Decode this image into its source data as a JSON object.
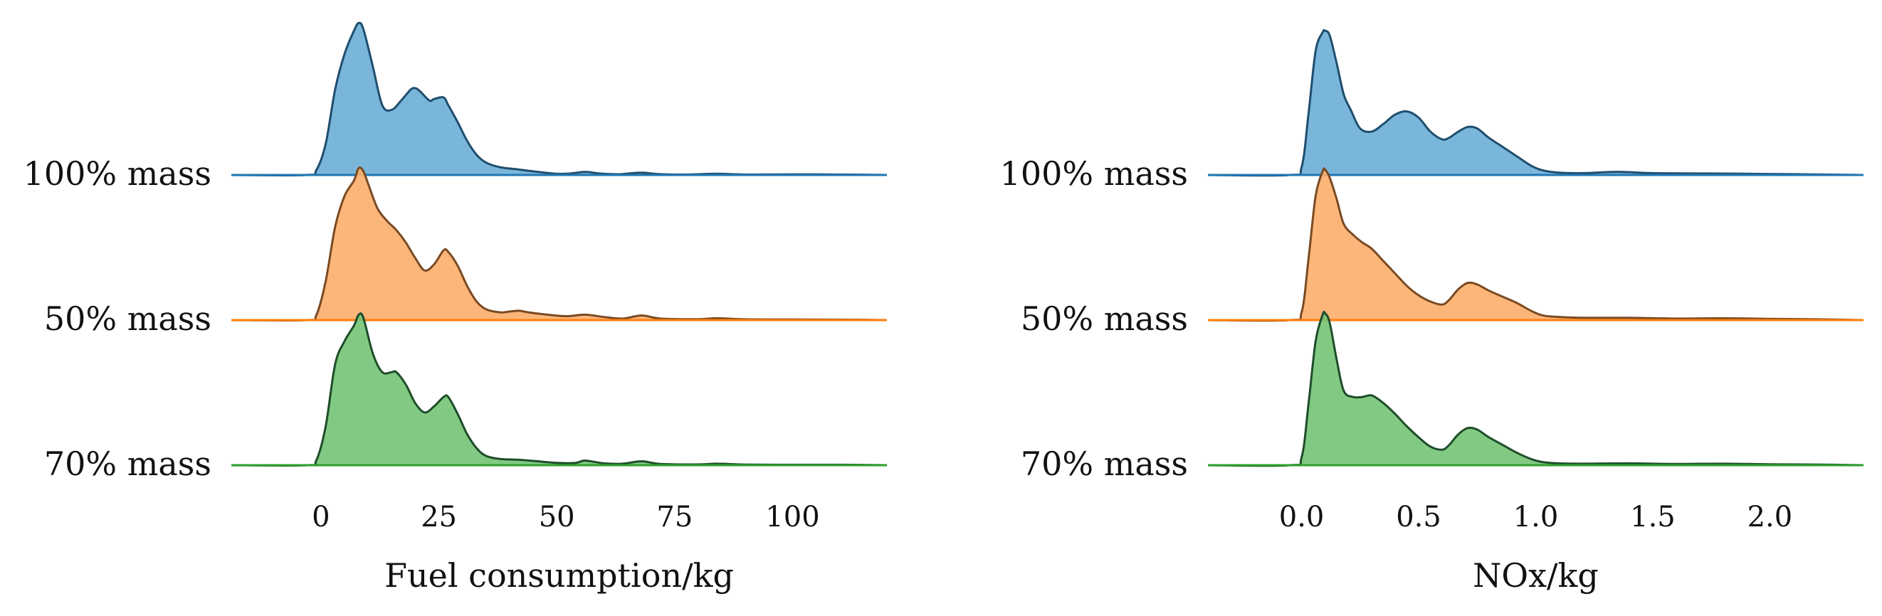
{
  "chart_data": [
    {
      "type": "area",
      "subtype": "ridgeline-kde",
      "title": "",
      "xlabel": "Fuel consumption/kg",
      "ylabel": "",
      "xlim": [
        -19,
        120
      ],
      "xticks": [
        0,
        25,
        50,
        75,
        100
      ],
      "xtick_labels": [
        "0",
        "25",
        "50",
        "75",
        "100"
      ],
      "grid": false,
      "series": [
        {
          "name": "100% mass",
          "color": "#6baed6",
          "edge": "#1f4e6e",
          "baseline": "#1f77b4",
          "x": [
            -19,
            -3,
            -1,
            1,
            3,
            5,
            7,
            8,
            9,
            11,
            13,
            15,
            17,
            19,
            20,
            21,
            23,
            24,
            26,
            27,
            29,
            31,
            33,
            35,
            38,
            42,
            46,
            50,
            53,
            56,
            59,
            62,
            64,
            68,
            72,
            78,
            84,
            90,
            100,
            110,
            120
          ],
          "values": [
            0,
            0,
            0.03,
            0.2,
            0.55,
            0.78,
            0.93,
            0.98,
            0.94,
            0.7,
            0.45,
            0.42,
            0.48,
            0.55,
            0.56,
            0.54,
            0.48,
            0.49,
            0.5,
            0.45,
            0.34,
            0.22,
            0.13,
            0.08,
            0.05,
            0.035,
            0.02,
            0.008,
            0.01,
            0.02,
            0.01,
            0.005,
            0.006,
            0.015,
            0.005,
            0.003,
            0.008,
            0.003,
            0.004,
            0.003,
            0
          ]
        },
        {
          "name": "50% mass",
          "color": "#fdae6b",
          "edge": "#7a4a22",
          "baseline": "#ff7f0e",
          "x": [
            -19,
            -3,
            -1,
            1,
            3,
            5,
            7,
            8,
            9,
            10,
            12,
            14,
            16,
            18,
            20,
            22,
            24,
            26,
            27,
            29,
            31,
            33,
            35,
            38,
            40,
            42,
            44,
            48,
            52,
            56,
            60,
            64,
            68,
            72,
            80,
            84,
            90,
            100,
            110,
            120
          ],
          "values": [
            0,
            0,
            0.03,
            0.25,
            0.6,
            0.8,
            0.9,
            0.98,
            0.96,
            0.88,
            0.72,
            0.64,
            0.58,
            0.5,
            0.4,
            0.32,
            0.36,
            0.45,
            0.44,
            0.35,
            0.22,
            0.12,
            0.07,
            0.05,
            0.055,
            0.06,
            0.05,
            0.035,
            0.025,
            0.035,
            0.02,
            0.01,
            0.03,
            0.01,
            0.006,
            0.012,
            0.005,
            0.004,
            0.003,
            0
          ]
        },
        {
          "name": "70% mass",
          "color": "#74c476",
          "edge": "#1e4d2a",
          "baseline": "#2ca02c",
          "x": [
            -19,
            -3,
            -1,
            1,
            3,
            5,
            7,
            8,
            9,
            11,
            13,
            15,
            16,
            18,
            20,
            22,
            24,
            26,
            27,
            29,
            31,
            33,
            35,
            38,
            42,
            46,
            50,
            54,
            56,
            60,
            64,
            68,
            72,
            80,
            84,
            90,
            100,
            110,
            120
          ],
          "values": [
            0,
            0,
            0.03,
            0.25,
            0.65,
            0.8,
            0.9,
            0.97,
            0.95,
            0.72,
            0.6,
            0.6,
            0.6,
            0.52,
            0.4,
            0.34,
            0.38,
            0.44,
            0.44,
            0.33,
            0.2,
            0.11,
            0.06,
            0.04,
            0.035,
            0.025,
            0.015,
            0.015,
            0.03,
            0.012,
            0.01,
            0.025,
            0.008,
            0.005,
            0.01,
            0.004,
            0.003,
            0.003,
            0
          ]
        }
      ]
    },
    {
      "type": "area",
      "subtype": "ridgeline-kde",
      "title": "",
      "xlabel": "NOx/kg",
      "ylabel": "",
      "xlim": [
        -0.4,
        2.4
      ],
      "xticks": [
        0,
        0.5,
        1.0,
        1.5,
        2.0
      ],
      "xtick_labels": [
        "0.0",
        "0.5",
        "1.0",
        "1.5",
        "2.0"
      ],
      "grid": false,
      "series": [
        {
          "name": "100% mass",
          "color": "#6baed6",
          "edge": "#1f4e6e",
          "baseline": "#1f77b4",
          "x": [
            -0.4,
            -0.05,
            0,
            0.03,
            0.06,
            0.09,
            0.1,
            0.12,
            0.15,
            0.18,
            0.21,
            0.25,
            0.3,
            0.35,
            0.4,
            0.45,
            0.5,
            0.55,
            0.6,
            0.63,
            0.67,
            0.71,
            0.75,
            0.8,
            0.86,
            0.92,
            0.98,
            1.03,
            1.1,
            1.2,
            1.35,
            1.5,
            1.7,
            1.9,
            2.1,
            2.4
          ],
          "values": [
            0,
            0,
            0.05,
            0.4,
            0.8,
            0.92,
            0.93,
            0.9,
            0.72,
            0.52,
            0.42,
            0.3,
            0.28,
            0.33,
            0.39,
            0.41,
            0.37,
            0.28,
            0.23,
            0.24,
            0.28,
            0.31,
            0.3,
            0.24,
            0.18,
            0.12,
            0.06,
            0.03,
            0.015,
            0.012,
            0.02,
            0.012,
            0.01,
            0.008,
            0.005,
            0
          ]
        },
        {
          "name": "50% mass",
          "color": "#fdae6b",
          "edge": "#7a4a22",
          "baseline": "#ff7f0e",
          "x": [
            -0.4,
            -0.05,
            0,
            0.03,
            0.06,
            0.09,
            0.1,
            0.12,
            0.15,
            0.18,
            0.22,
            0.26,
            0.3,
            0.35,
            0.4,
            0.45,
            0.5,
            0.55,
            0.6,
            0.63,
            0.67,
            0.71,
            0.75,
            0.8,
            0.86,
            0.92,
            0.98,
            1.03,
            1.1,
            1.2,
            1.4,
            1.6,
            1.8,
            2.0,
            2.2,
            2.4
          ],
          "values": [
            0,
            0,
            0.05,
            0.4,
            0.8,
            0.96,
            0.97,
            0.92,
            0.78,
            0.62,
            0.55,
            0.5,
            0.46,
            0.38,
            0.3,
            0.22,
            0.16,
            0.12,
            0.1,
            0.13,
            0.2,
            0.24,
            0.23,
            0.19,
            0.15,
            0.11,
            0.06,
            0.03,
            0.02,
            0.015,
            0.015,
            0.01,
            0.012,
            0.008,
            0.005,
            0
          ]
        },
        {
          "name": "70% mass",
          "color": "#74c476",
          "edge": "#1e4d2a",
          "baseline": "#2ca02c",
          "x": [
            -0.4,
            -0.05,
            0,
            0.03,
            0.06,
            0.09,
            0.1,
            0.12,
            0.15,
            0.18,
            0.22,
            0.26,
            0.3,
            0.35,
            0.4,
            0.45,
            0.5,
            0.55,
            0.6,
            0.63,
            0.67,
            0.71,
            0.75,
            0.8,
            0.86,
            0.92,
            0.98,
            1.03,
            1.1,
            1.2,
            1.4,
            1.6,
            1.8,
            2.0,
            2.2,
            2.4
          ],
          "values": [
            0,
            0,
            0.05,
            0.4,
            0.8,
            0.97,
            0.98,
            0.92,
            0.68,
            0.48,
            0.44,
            0.44,
            0.45,
            0.4,
            0.33,
            0.25,
            0.18,
            0.12,
            0.1,
            0.13,
            0.2,
            0.24,
            0.23,
            0.18,
            0.13,
            0.08,
            0.04,
            0.02,
            0.012,
            0.01,
            0.012,
            0.008,
            0.01,
            0.006,
            0.004,
            0
          ]
        }
      ]
    }
  ]
}
